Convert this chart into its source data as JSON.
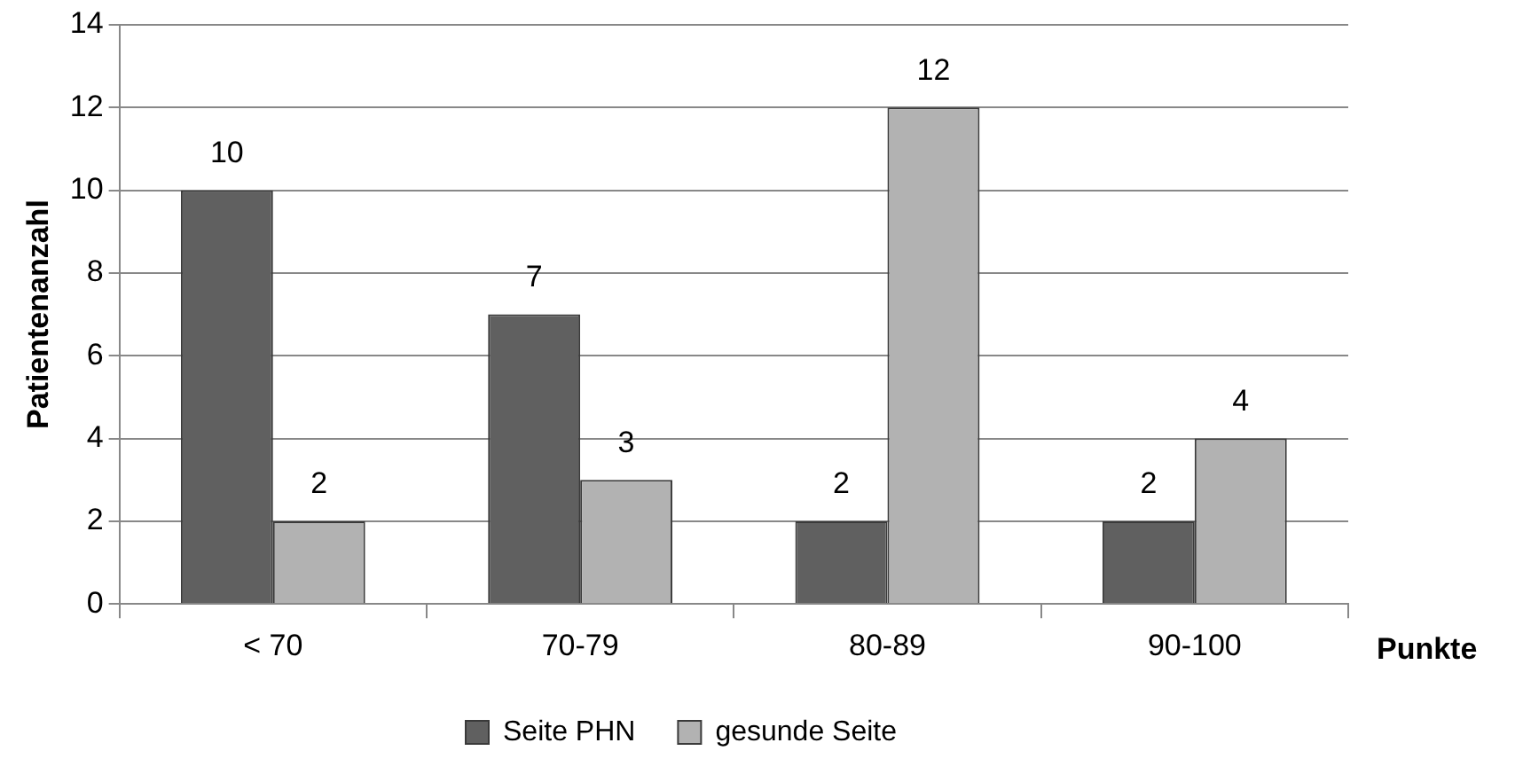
{
  "chart_data": {
    "type": "bar",
    "xlabel": "Punkte",
    "ylabel": "Patientenanzahl",
    "categories": [
      "< 70",
      "70-79",
      "80-89",
      "90-100"
    ],
    "series": [
      {
        "name": "Seite PHN",
        "color": "#606060",
        "values": [
          10,
          7,
          2,
          2
        ]
      },
      {
        "name": "gesunde Seite",
        "color": "#b2b2b2",
        "values": [
          2,
          3,
          12,
          4
        ]
      }
    ],
    "ylim": [
      0,
      14
    ],
    "yticks": [
      0,
      2,
      4,
      6,
      8,
      10,
      12,
      14
    ],
    "grid": "y",
    "legend": "bottom",
    "data_labels": true
  }
}
